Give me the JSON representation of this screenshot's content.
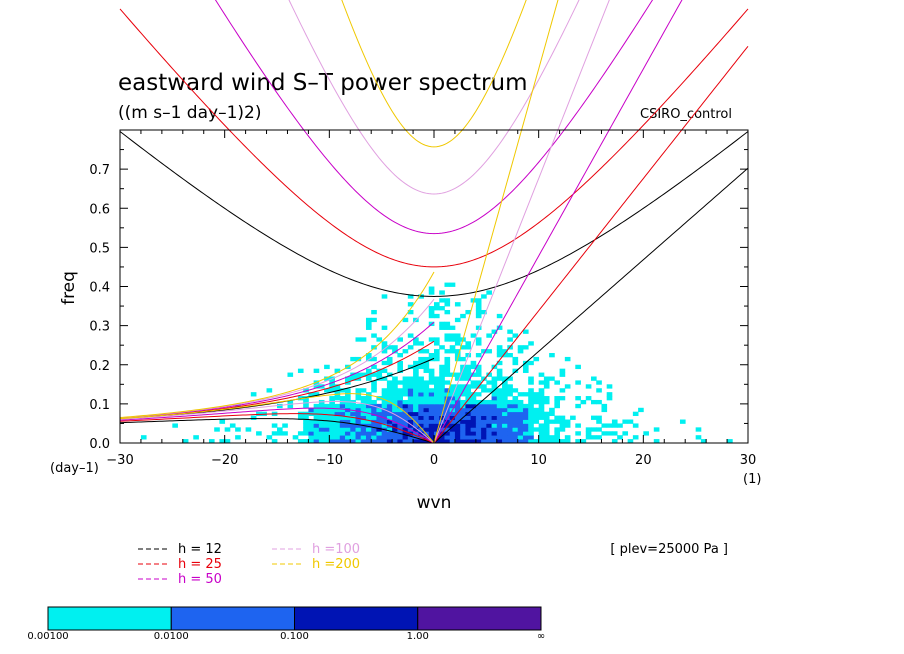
{
  "chart_data": {
    "type": "heatmap",
    "title": "eastward wind S–T power spectrum",
    "subtitle": "((m s–1 day–1)2)",
    "model_label": "CSIRO_control",
    "level_label": "[ plev=25000 Pa ]",
    "xlabel": "wvn",
    "ylabel": "freq",
    "x_unit_label": "(1)",
    "y_unit_label": "(day–1)",
    "xlim": [
      -30,
      30
    ],
    "ylim": [
      0,
      0.8
    ],
    "x_ticks": [
      {
        "value": -30,
        "label": "−30"
      },
      {
        "value": -20,
        "label": "−20"
      },
      {
        "value": -10,
        "label": "−10"
      },
      {
        "value": 0,
        "label": "0"
      },
      {
        "value": 10,
        "label": "10"
      },
      {
        "value": 20,
        "label": "20"
      },
      {
        "value": 30,
        "label": "30"
      }
    ],
    "y_ticks": [
      {
        "value": 0.0,
        "label": "0.0"
      },
      {
        "value": 0.1,
        "label": "0.1"
      },
      {
        "value": 0.2,
        "label": "0.2"
      },
      {
        "value": 0.3,
        "label": "0.3"
      },
      {
        "value": 0.4,
        "label": "0.4"
      },
      {
        "value": 0.5,
        "label": "0.5"
      },
      {
        "value": 0.6,
        "label": "0.6"
      },
      {
        "value": 0.7,
        "label": "0.7"
      }
    ],
    "dispersion_curves": [
      {
        "h": 12,
        "label": "h = 12",
        "color": "#000000"
      },
      {
        "h": 25,
        "label": "h = 25",
        "color": "#e8000b"
      },
      {
        "h": 50,
        "label": "h = 50",
        "color": "#c800c8"
      },
      {
        "h": 100,
        "label": "h =100",
        "color": "#e0a0e0"
      },
      {
        "h": 200,
        "label": "h =200",
        "color": "#f0c800"
      }
    ],
    "colorbar": {
      "levels": [
        {
          "label": "0.00100"
        },
        {
          "label": "0.0100"
        },
        {
          "label": "0.100"
        },
        {
          "label": "1.00"
        },
        {
          "label": "∞"
        }
      ],
      "colors": [
        "#00f0f0",
        "#1e64f0",
        "#0014b4",
        "#5014a0"
      ]
    }
  }
}
